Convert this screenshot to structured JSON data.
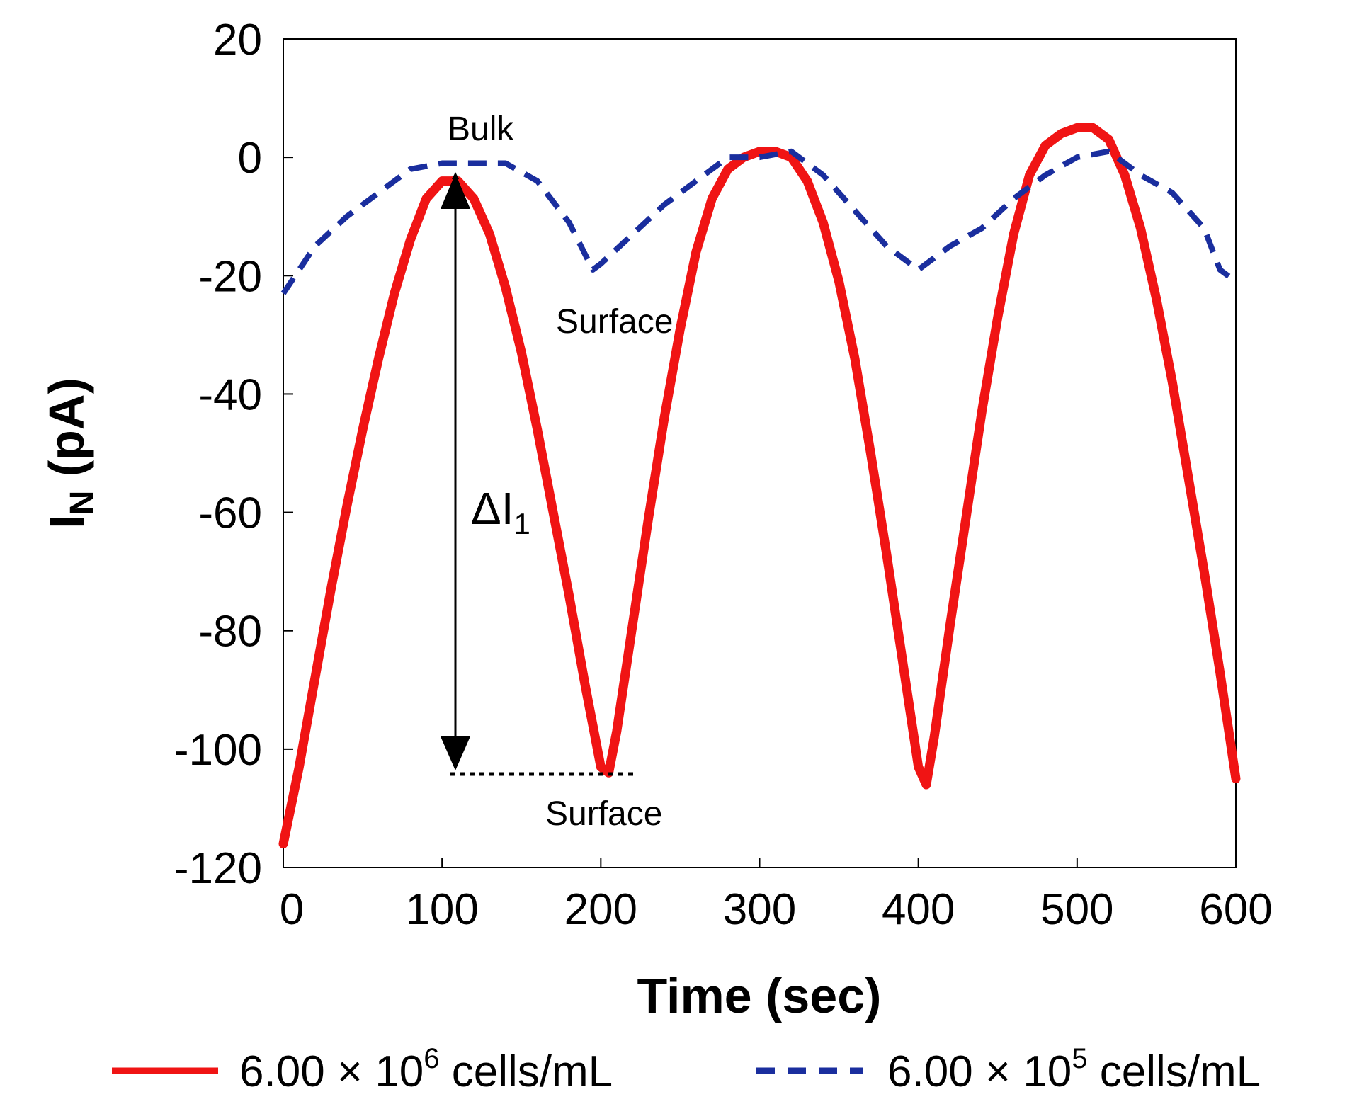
{
  "chart_data": {
    "type": "line",
    "title": "",
    "xlabel": "Time (sec)",
    "ylabel": "I",
    "ylabel_sub": "N",
    "ylabel_unit": " (pA)",
    "xlim": [
      0,
      600
    ],
    "ylim": [
      -120,
      20
    ],
    "xticks": [
      0,
      100,
      200,
      300,
      400,
      500,
      600
    ],
    "yticks": [
      20,
      0,
      -20,
      -40,
      -60,
      -80,
      -100,
      -120
    ],
    "grid": false,
    "colors": {
      "red": "#f01414",
      "blue": "#1a2e9e"
    },
    "series": [
      {
        "name": "6.00 × 10^6 cells/mL",
        "style": "solid",
        "color": "#f01414",
        "x": [
          0,
          10,
          20,
          30,
          40,
          50,
          60,
          70,
          80,
          90,
          100,
          110,
          120,
          130,
          140,
          150,
          160,
          170,
          180,
          190,
          200,
          205,
          210,
          220,
          230,
          240,
          250,
          260,
          270,
          280,
          290,
          300,
          310,
          320,
          330,
          340,
          350,
          360,
          370,
          380,
          390,
          400,
          405,
          410,
          420,
          430,
          440,
          450,
          460,
          470,
          480,
          490,
          500,
          510,
          520,
          530,
          540,
          550,
          560,
          570,
          580,
          590,
          600
        ],
        "y": [
          -116,
          -103,
          -88,
          -73,
          -59,
          -46,
          -34,
          -23,
          -14,
          -7,
          -4,
          -4,
          -7,
          -13,
          -22,
          -33,
          -46,
          -60,
          -74,
          -89,
          -103,
          -104,
          -97,
          -79,
          -61,
          -44,
          -29,
          -16,
          -7,
          -2,
          0,
          1,
          1,
          0,
          -4,
          -11,
          -21,
          -34,
          -50,
          -67,
          -85,
          -103,
          -106,
          -98,
          -79,
          -61,
          -43,
          -27,
          -13,
          -3,
          2,
          4,
          5,
          5,
          3,
          -3,
          -12,
          -24,
          -38,
          -54,
          -70,
          -87,
          -105
        ]
      },
      {
        "name": "6.00 × 10^5 cells/mL",
        "style": "dashed",
        "color": "#1a2e9e",
        "x": [
          0,
          20,
          40,
          60,
          80,
          100,
          110,
          120,
          140,
          160,
          180,
          195,
          200,
          220,
          240,
          260,
          280,
          300,
          320,
          340,
          360,
          380,
          400,
          420,
          440,
          460,
          480,
          500,
          520,
          540,
          560,
          580,
          590,
          600
        ],
        "y": [
          -23,
          -15,
          -10,
          -6,
          -2,
          -1,
          -1,
          -1,
          -1,
          -4,
          -11,
          -19,
          -18,
          -13,
          -8,
          -4,
          0,
          0,
          1,
          -3,
          -9,
          -15,
          -19,
          -15,
          -12,
          -7,
          -3,
          0,
          1,
          -3,
          -6,
          -12,
          -19,
          -21
        ]
      }
    ],
    "annotations": [
      {
        "text": "Bulk"
      },
      {
        "text": "Surface"
      },
      {
        "text": "Surface"
      },
      {
        "text": "ΔI",
        "sub": "1"
      }
    ],
    "legend": [
      {
        "label": "6.00 × 10",
        "exp": "6",
        "suffix": " cells/mL",
        "style": "solid",
        "color": "#f01414"
      },
      {
        "label": "6.00 × 10",
        "exp": "5",
        "suffix": " cells/mL",
        "style": "dashed",
        "color": "#1a2e9e"
      }
    ],
    "legend_position": "bottom"
  }
}
